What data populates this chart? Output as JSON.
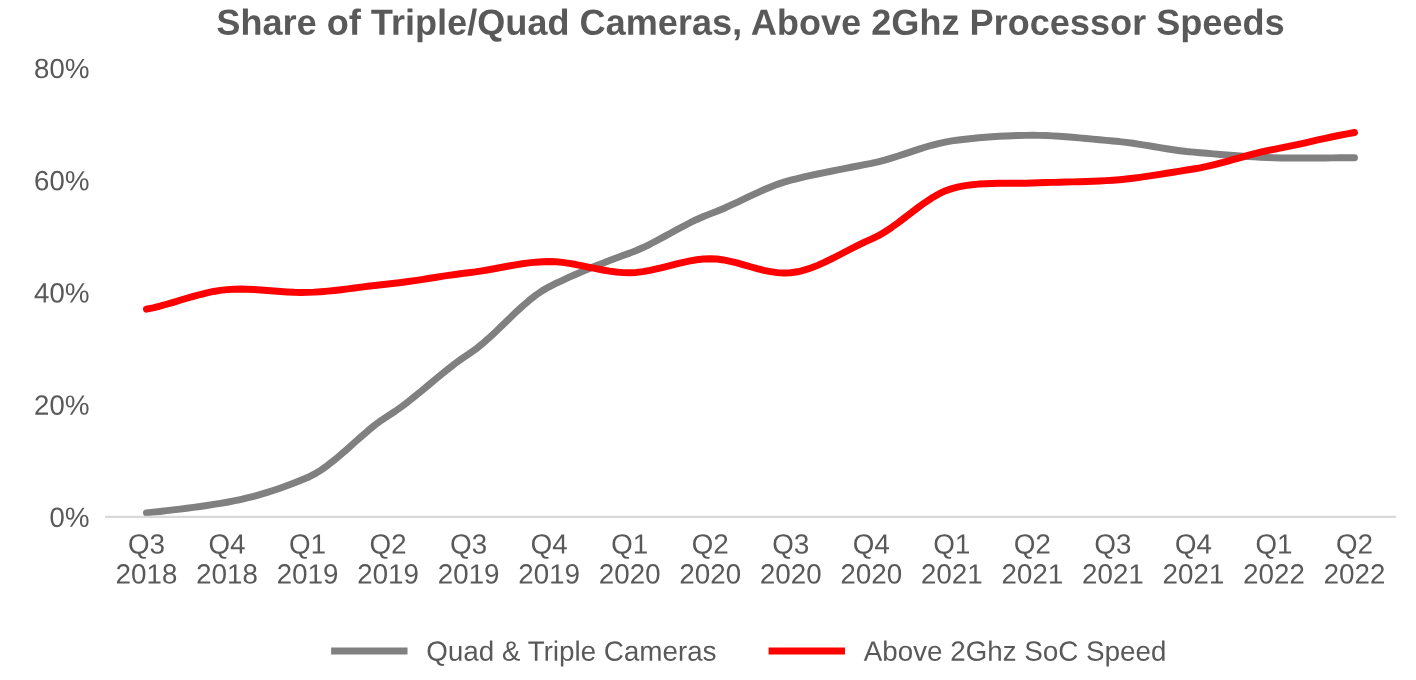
{
  "chart_data": {
    "type": "line",
    "title": "Share of Triple/Quad Cameras, Above 2Ghz Processor Speeds",
    "categories": [
      "Q3\n2018",
      "Q4\n2018",
      "Q1\n2019",
      "Q2\n2019",
      "Q3\n2019",
      "Q4\n2019",
      "Q1\n2020",
      "Q2\n2020",
      "Q3\n2020",
      "Q4\n2020",
      "Q1\n2021",
      "Q2\n2021",
      "Q3\n2021",
      "Q4\n2021",
      "Q1\n2022",
      "Q2\n2022"
    ],
    "series": [
      {
        "name": "Quad & Triple Cameras",
        "color": "#808080",
        "values": [
          0.7,
          2.6,
          7,
          18,
          29,
          41,
          47,
          54,
          60,
          63,
          67,
          68,
          67,
          65,
          64,
          64
        ]
      },
      {
        "name": "Above 2Ghz SoC Speed",
        "color": "#ff0000",
        "values": [
          37,
          40.5,
          40,
          41.5,
          43.5,
          45.5,
          43.5,
          46,
          43.5,
          49.5,
          58.5,
          59.5,
          60,
          62,
          65.5,
          68.5
        ]
      }
    ],
    "ylim": [
      0,
      80
    ],
    "yticks": [
      {
        "value": 0,
        "label": "0%"
      },
      {
        "value": 20,
        "label": "20%"
      },
      {
        "value": 40,
        "label": "40%"
      },
      {
        "value": 60,
        "label": "60%"
      },
      {
        "value": 80,
        "label": "80%"
      }
    ],
    "grid": false,
    "legend": "bottom",
    "marker": "none",
    "line_style": "solid"
  }
}
